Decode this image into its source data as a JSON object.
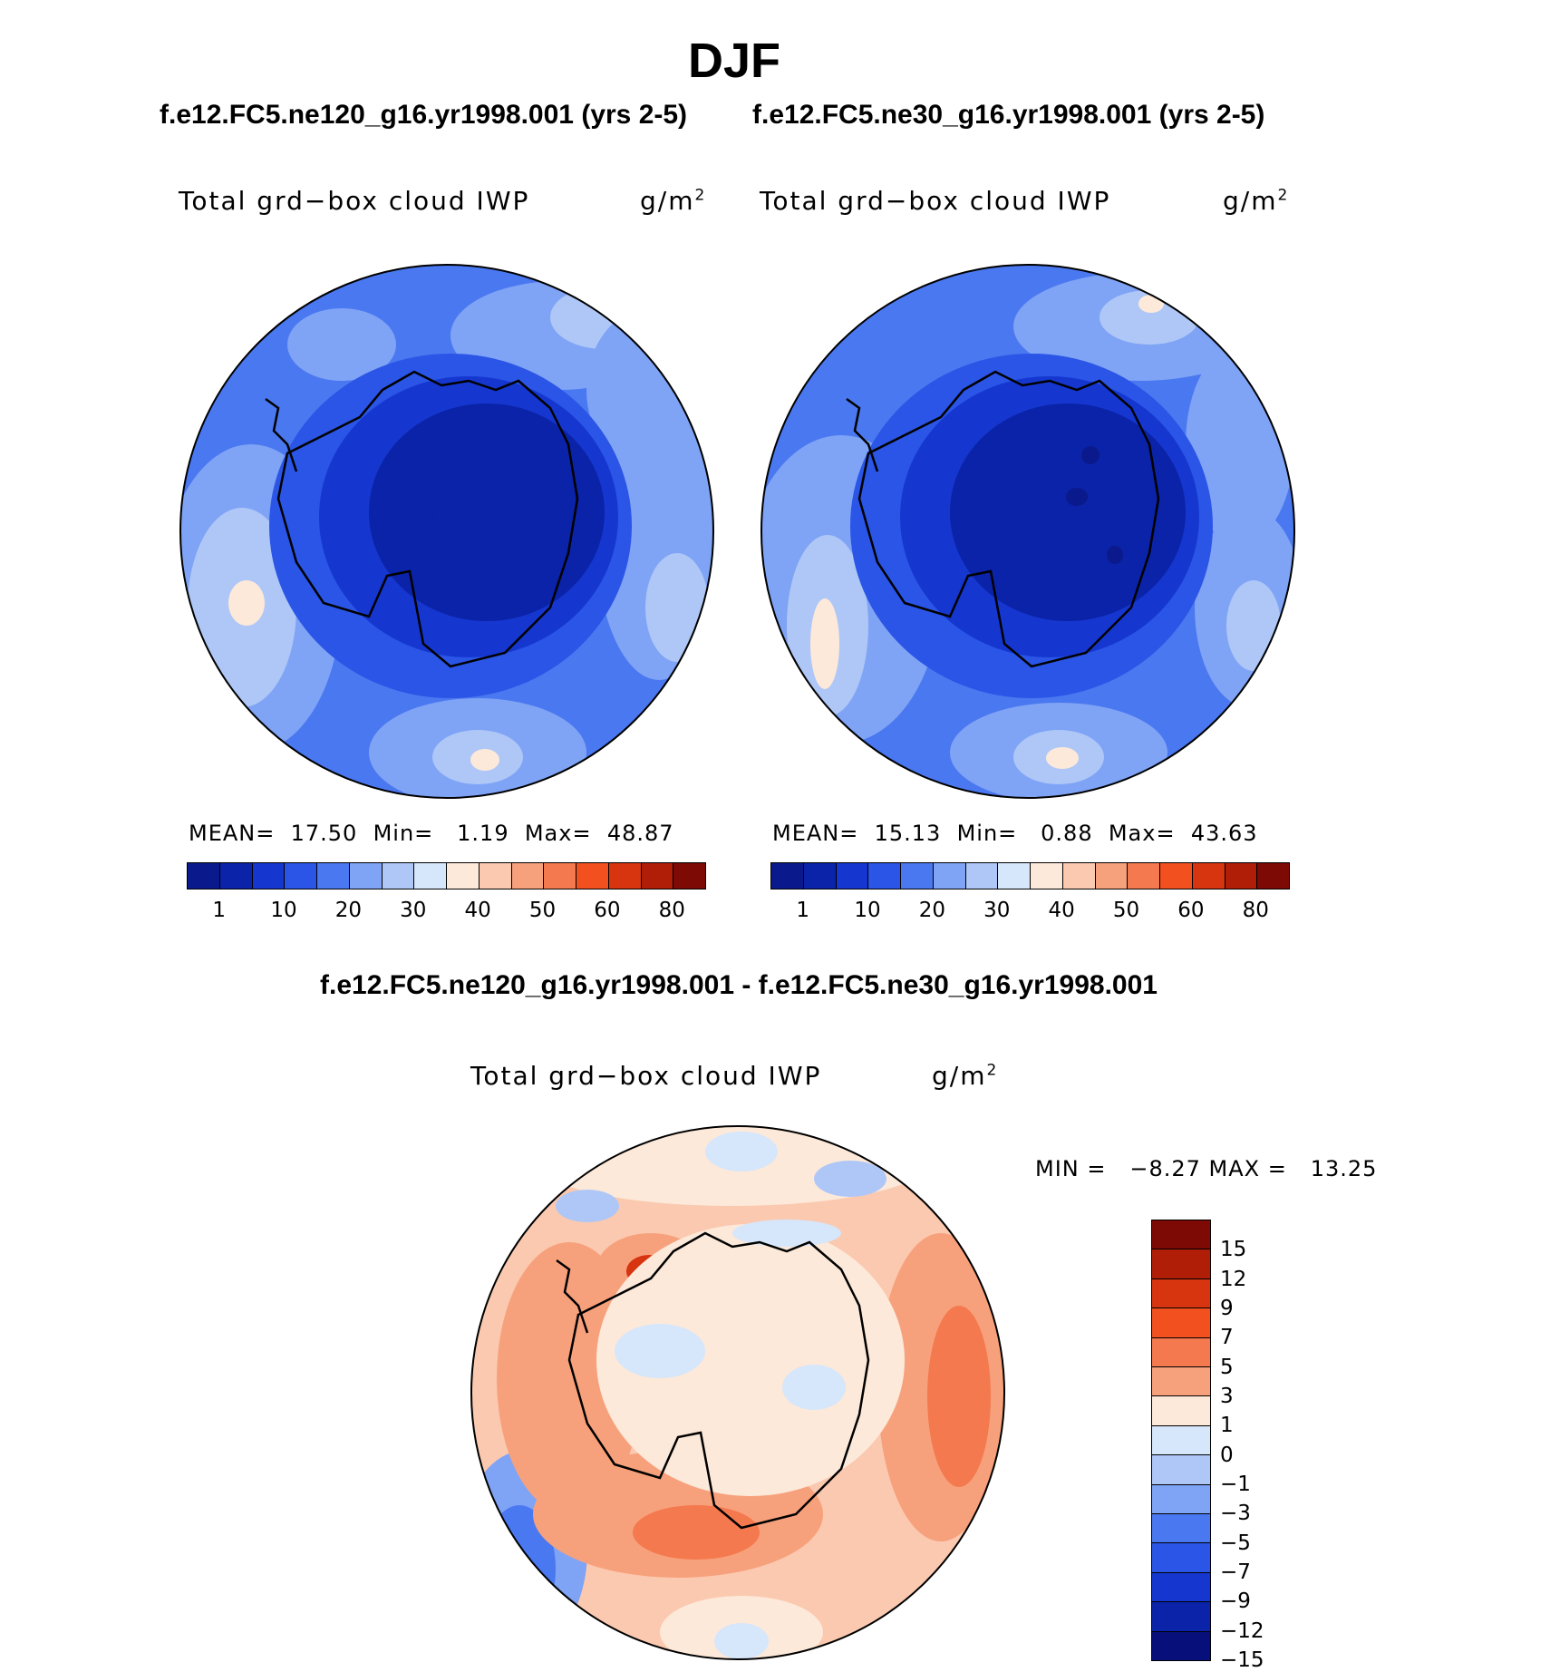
{
  "season": "DJF",
  "panel_left": {
    "case": "f.e12.FC5.ne120_g16.yr1998.001 (yrs 2-5)",
    "variable": "Total grd−box cloud IWP",
    "units": "g/m",
    "units_sup": "2",
    "stats": "MEAN=  17.50  Min=   1.19  Max=  48.87",
    "mean": 17.5,
    "min": 1.19,
    "max": 48.87
  },
  "panel_right": {
    "case": "f.e12.FC5.ne30_g16.yr1998.001 (yrs 2-5)",
    "variable": "Total grd−box cloud IWP",
    "units": "g/m",
    "units_sup": "2",
    "stats": "MEAN=  15.13  Min=   0.88  Max=  43.63",
    "mean": 15.13,
    "min": 0.88,
    "max": 43.63
  },
  "panel_diff": {
    "title": "f.e12.FC5.ne120_g16.yr1998.001 - f.e12.FC5.ne30_g16.yr1998.001",
    "variable": "Total grd−box cloud IWP",
    "units": "g/m",
    "units_sup": "2",
    "stats": "MIN =   −8.27 MAX =   13.25",
    "min": -8.27,
    "max": 13.25
  },
  "colorbar_abs": {
    "colors": [
      "#0a1a8c",
      "#0b23a8",
      "#1537d0",
      "#2a55e6",
      "#4a78f0",
      "#7fa3f5",
      "#aec7f7",
      "#d6e6fb",
      "#fde9d9",
      "#fbc9b0",
      "#f7a17c",
      "#f4794e",
      "#f2501f",
      "#d63510",
      "#b01e08",
      "#7d0a05"
    ],
    "labels": [
      "1",
      "10",
      "20",
      "30",
      "40",
      "50",
      "60",
      "80"
    ]
  },
  "colorbar_diff": {
    "colors": [
      "#7d0a05",
      "#b01e08",
      "#d63510",
      "#f2501f",
      "#f4794e",
      "#f7a17c",
      "#fde9d9",
      "#d6e6fb",
      "#aec7f7",
      "#7fa3f5",
      "#4a78f0",
      "#2a55e6",
      "#1537d0",
      "#0b23a8",
      "#07107a"
    ],
    "labels": [
      "15",
      "12",
      "9",
      "7",
      "5",
      "3",
      "1",
      "0",
      "−1",
      "−3",
      "−5",
      "−7",
      "−9",
      "−12",
      "−15"
    ]
  }
}
